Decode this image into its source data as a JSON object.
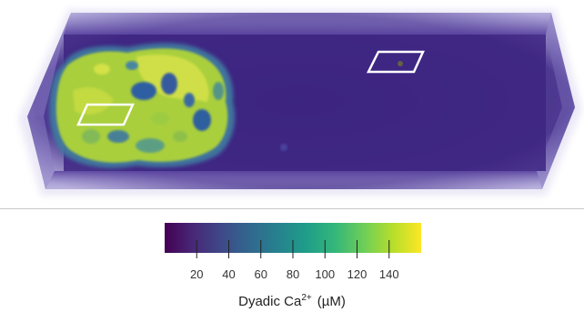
{
  "colorbar": {
    "ticks": [
      "20",
      "40",
      "60",
      "80",
      "100",
      "120",
      "140"
    ],
    "tick_values": [
      20,
      40,
      60,
      80,
      100,
      120,
      140
    ],
    "range": [
      0,
      160
    ],
    "colormap": "viridis",
    "colors": [
      "#440154",
      "#482878",
      "#3e4989",
      "#31688e",
      "#26828e",
      "#1f9e89",
      "#35b779",
      "#6ece58",
      "#b5de2b",
      "#fde725"
    ],
    "title_main": "Dyadic Ca",
    "title_sup": "2+",
    "title_unit": "(µM)"
  },
  "scene": {
    "box_color": "#3f2682",
    "cell_colors": [
      "#b9d634",
      "#8ec04a",
      "#4f8f88",
      "#2f6fa0",
      "#d9e34a"
    ],
    "roi_outline_color": "#ffffff",
    "rois": [
      "roi-left",
      "roi-right"
    ]
  }
}
